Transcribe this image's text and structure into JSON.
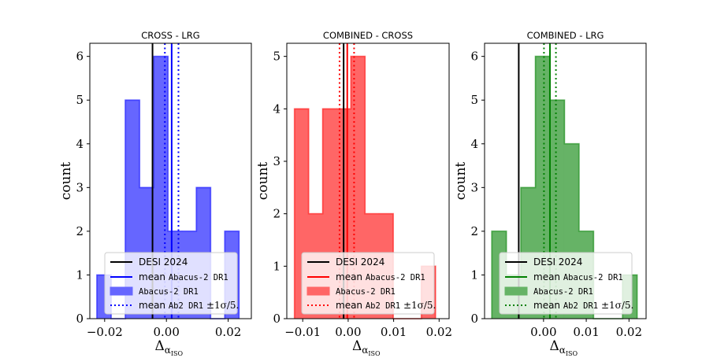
{
  "figure": {
    "ylabel": "count"
  },
  "chart_data": [
    {
      "type": "histogram",
      "title": "CROSS - LRG",
      "color": "#0000ff",
      "xlabel": "Δ",
      "xlabel_sub": "α",
      "xlabel_subsub": "ISO",
      "ylabel": "count",
      "xlim": [
        -0.0248,
        0.0275
      ],
      "ylim": [
        0,
        6.3
      ],
      "xticks": [
        -0.02,
        0.0,
        0.02
      ],
      "xtick_labels": [
        "−0.02",
        "0.00",
        "0.02"
      ],
      "yticks": [
        0,
        1,
        2,
        3,
        4,
        5,
        6
      ],
      "bins": [
        -0.0225,
        -0.0179,
        -0.0133,
        -0.0087,
        -0.0041,
        0.0005,
        0.0051,
        0.0097,
        0.0143,
        0.0189,
        0.0235
      ],
      "counts": [
        1,
        0,
        5,
        3,
        6,
        2,
        2,
        3,
        0,
        2
      ],
      "desi_2024": -0.0045,
      "mean_abacus": 0.0017,
      "mean_minus_sigma": -0.0005,
      "mean_plus_sigma": 0.0039,
      "legend": {
        "desi": "DESI 2024",
        "mean_prefix": "mean ",
        "mean_mono": "Abacus-2 DR1",
        "hist_label": "Abacus-2 DR1",
        "sigma_prefix": "mean ",
        "sigma_mono": "Ab2 DR1",
        "sigma_suffix": " ±1σ/5."
      }
    },
    {
      "type": "histogram",
      "title": "COMBINED - CROSS",
      "color": "#ff0000",
      "xlabel": "Δ",
      "xlabel_sub": "α",
      "xlabel_subsub": "ISO",
      "ylabel": "count",
      "xlim": [
        -0.0135,
        0.0222
      ],
      "ylim": [
        0,
        5.25
      ],
      "xticks": [
        -0.01,
        0.0,
        0.01,
        0.02
      ],
      "xtick_labels": [
        "−0.01",
        "0.00",
        "0.01",
        "0.02"
      ],
      "yticks": [
        0,
        1,
        2,
        3,
        4,
        5
      ],
      "bins": [
        -0.0118,
        -0.0087,
        -0.0056,
        -0.0025,
        0.0006,
        0.0037,
        0.0068,
        0.0099,
        0.013,
        0.0161,
        0.0192
      ],
      "counts": [
        4,
        2,
        4,
        4,
        5,
        2,
        2,
        0,
        0,
        1
      ],
      "desi_2024": -0.001,
      "mean_abacus": -0.0002,
      "mean_minus_sigma": -0.0019,
      "mean_plus_sigma": 0.0013,
      "legend": {
        "desi": "DESI 2024",
        "mean_prefix": "mean ",
        "mean_mono": "Abacus-2 DR1",
        "hist_label": "Abacus-2 DR1",
        "sigma_prefix": "mean ",
        "sigma_mono": "Ab2 DR1",
        "sigma_suffix": " ±1σ/5."
      }
    },
    {
      "type": "histogram",
      "title": "COMBINED - LRG",
      "color": "#008000",
      "xlabel": "Δ",
      "xlabel_sub": "α",
      "xlabel_subsub": "ISO",
      "ylabel": "count",
      "xlim": [
        -0.0138,
        0.024
      ],
      "ylim": [
        0,
        6.3
      ],
      "xticks": [
        0.0,
        0.01,
        0.02
      ],
      "xtick_labels": [
        "0.00",
        "0.01",
        "0.02"
      ],
      "yticks": [
        0,
        1,
        2,
        3,
        4,
        5,
        6
      ],
      "bins": [
        -0.0121,
        -0.0087,
        -0.0053,
        -0.0019,
        0.0015,
        0.0049,
        0.0083,
        0.0117,
        0.0151,
        0.0185,
        0.0219
      ],
      "counts": [
        2,
        1,
        3,
        6,
        5,
        4,
        2,
        0,
        0,
        1
      ],
      "desi_2024": -0.0058,
      "mean_abacus": 0.0015,
      "mean_minus_sigma": 0.0001,
      "mean_plus_sigma": 0.0029,
      "legend": {
        "desi": "DESI 2024",
        "mean_prefix": "mean ",
        "mean_mono": "Abacus-2 DR1",
        "hist_label": "Abacus-2 DR1",
        "sigma_prefix": "mean ",
        "sigma_mono": "Ab2 DR1",
        "sigma_suffix": " ±1σ/5."
      }
    }
  ]
}
